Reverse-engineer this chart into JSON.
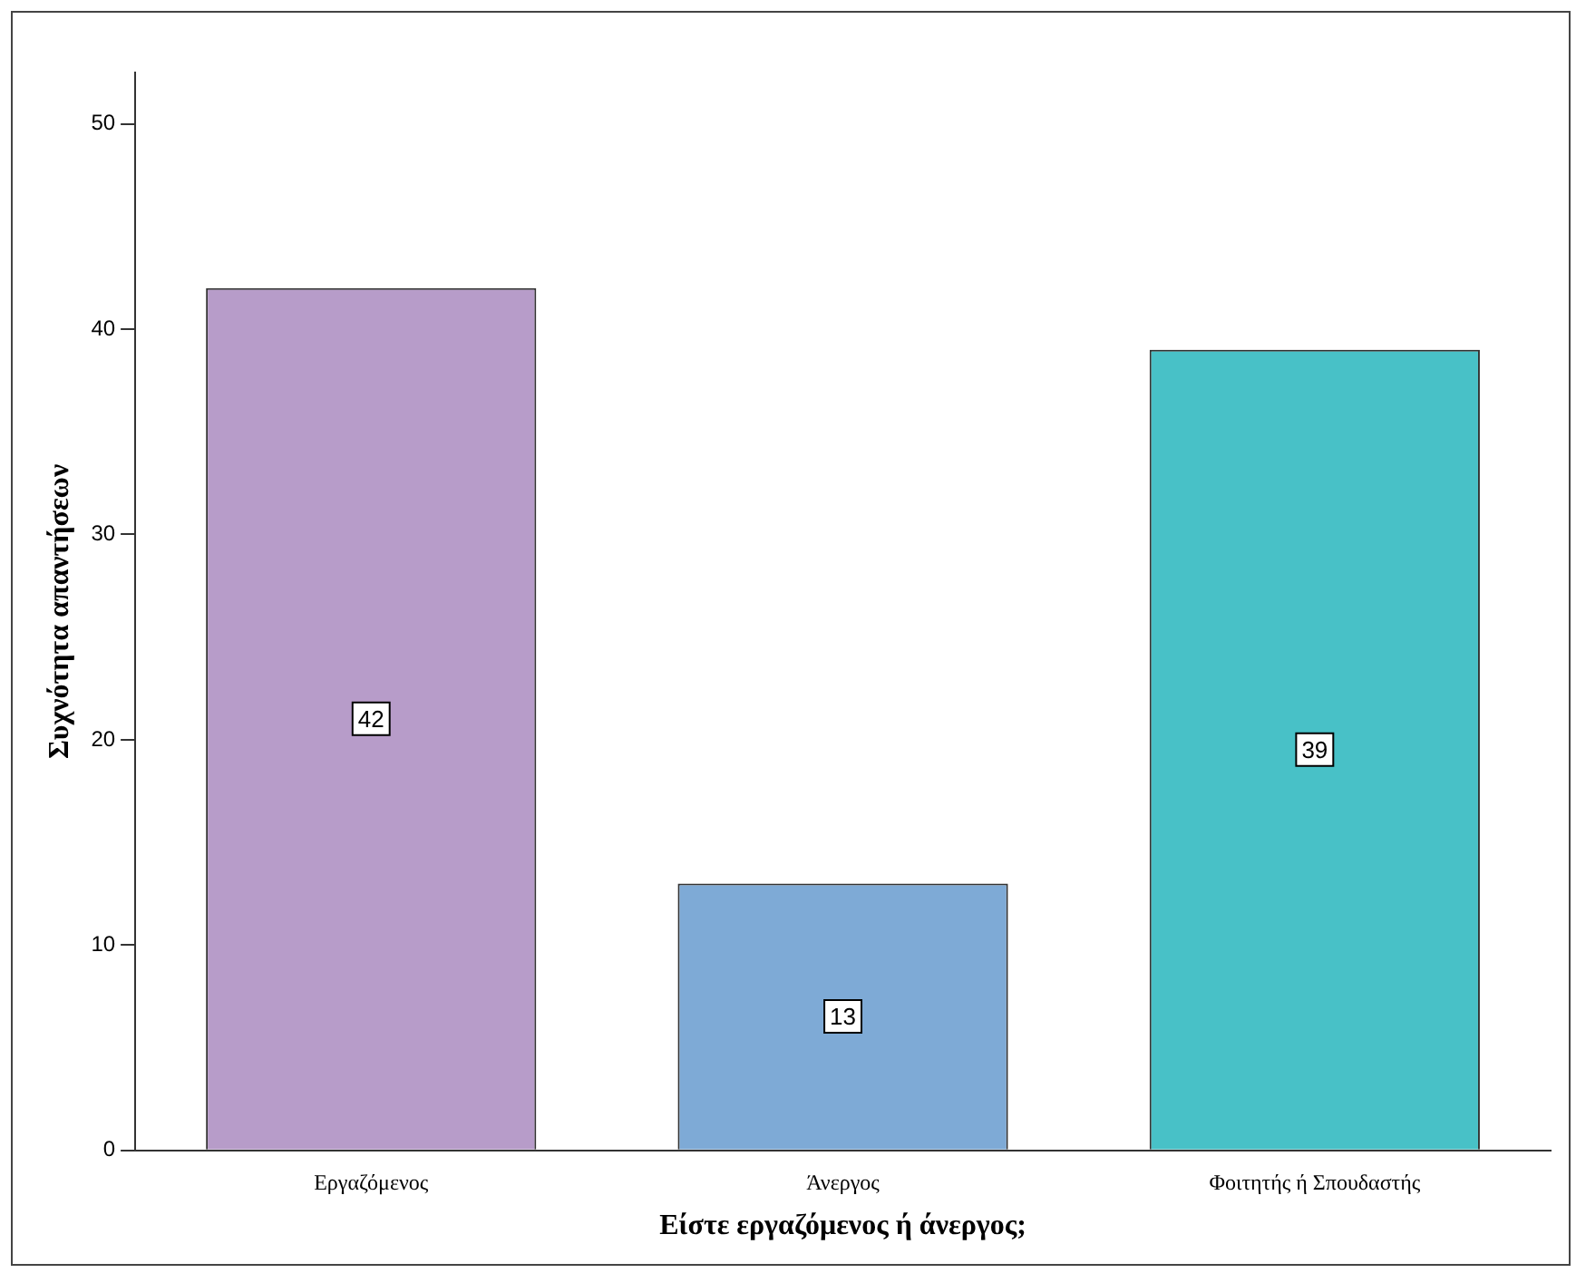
{
  "chart_data": {
    "type": "bar",
    "xlabel": "Είστε εργαζόμενος ή άνεργος;",
    "ylabel": "Συχνότητα απαντήσεων",
    "categories": [
      "Εργαζόμενος",
      "Άνεργος",
      "Φοιτητής ή Σπουδαστής"
    ],
    "values": [
      42,
      13,
      39
    ],
    "colors": [
      "#b79cc9",
      "#7eaad6",
      "#48c1c7"
    ],
    "ylim": [
      0,
      52.5
    ],
    "yticks": [
      0,
      10,
      20,
      30,
      40,
      50
    ],
    "grid": false,
    "legend": false,
    "data_labels": true
  }
}
